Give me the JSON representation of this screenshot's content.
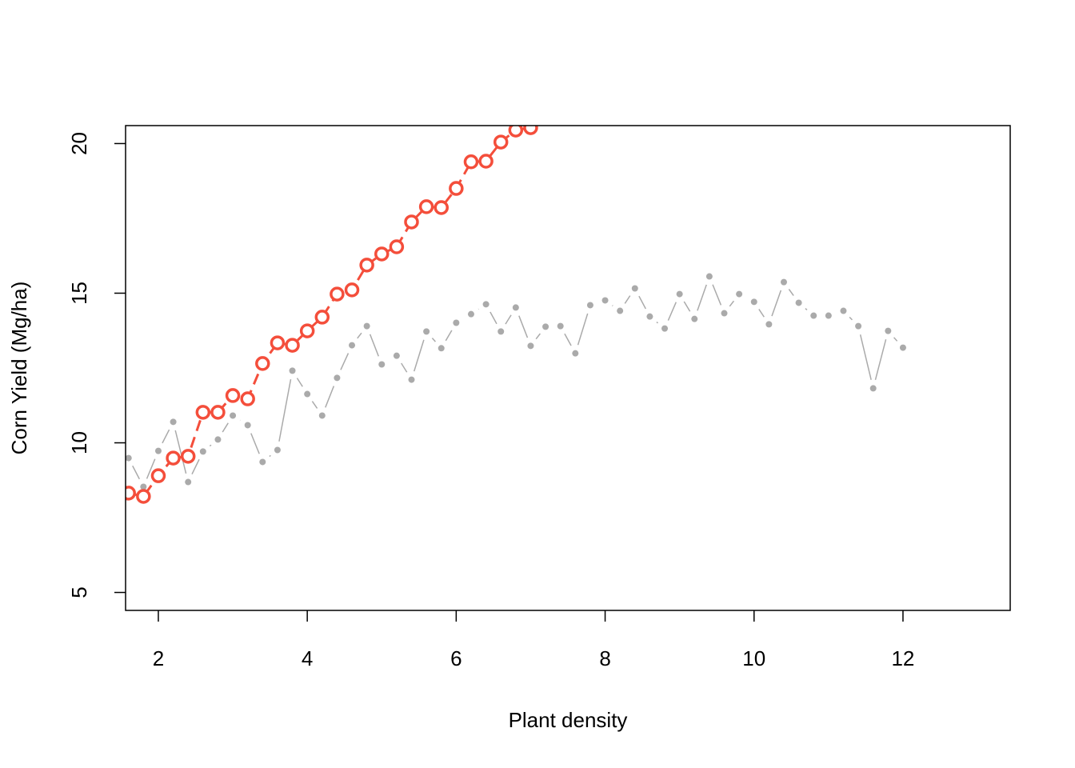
{
  "chart_data": {
    "type": "line",
    "x_label": "Plant density",
    "y_label": "Corn Yield (Mg/ha)",
    "xlim": [
      1.56,
      13.44
    ],
    "ylim": [
      4.4,
      20.6
    ],
    "xticks": [
      2,
      4,
      6,
      8,
      10,
      12
    ],
    "yticks": [
      5,
      10,
      15,
      20
    ],
    "series": [
      {
        "color": "#aaaaaa",
        "marker": "dot",
        "line_style": "solid",
        "x": [
          1.6,
          1.8,
          2.0,
          2.2,
          2.4,
          2.6,
          2.8,
          3.0,
          3.2,
          3.4,
          3.6,
          3.8,
          4.0,
          4.2,
          4.4,
          4.6,
          4.8,
          5.0,
          5.2,
          5.4,
          5.6,
          5.8,
          6.0,
          6.2,
          6.4,
          6.6,
          6.8,
          7.0,
          7.2,
          7.4,
          7.6,
          7.8,
          8.0,
          8.2,
          8.4,
          8.6,
          8.8,
          9.0,
          9.2,
          9.4,
          9.6,
          9.8,
          10.0,
          10.2,
          10.4,
          10.6,
          10.8,
          11.0,
          11.2,
          11.4,
          11.6,
          11.8,
          12.0
        ],
        "values": [
          9.49,
          8.53,
          9.73,
          10.7,
          8.69,
          9.71,
          10.11,
          10.91,
          10.59,
          9.36,
          9.76,
          12.41,
          11.63,
          10.91,
          12.17,
          13.26,
          13.9,
          12.62,
          12.91,
          12.11,
          13.72,
          13.16,
          14.01,
          14.3,
          14.63,
          13.72,
          14.52,
          13.24,
          13.88,
          13.9,
          12.99,
          14.6,
          14.76,
          14.41,
          15.16,
          14.22,
          13.82,
          14.97,
          14.14,
          15.56,
          14.33,
          14.97,
          14.71,
          13.96,
          15.37,
          14.68,
          14.25,
          14.25,
          14.41,
          13.9,
          11.82,
          13.74,
          13.18
        ]
      },
      {
        "color": "#f44e3b",
        "marker": "open-circle",
        "line_style": "dashed",
        "x": [
          1.6,
          1.8,
          2.0,
          2.2,
          2.4,
          2.6,
          2.8,
          3.0,
          3.2,
          3.4,
          3.6,
          3.8,
          4.0,
          4.2,
          4.4,
          4.6,
          4.8,
          5.0,
          5.2,
          5.4,
          5.6,
          5.8,
          6.0,
          6.2,
          6.4,
          6.6,
          6.8,
          7.0
        ],
        "values": [
          8.32,
          8.21,
          8.9,
          9.49,
          9.55,
          11.02,
          11.02,
          11.58,
          11.47,
          12.65,
          13.34,
          13.26,
          13.74,
          14.2,
          14.97,
          15.11,
          15.94,
          16.31,
          16.55,
          17.38,
          17.89,
          17.86,
          18.5,
          19.39,
          19.41,
          20.05,
          20.45,
          20.53
        ]
      }
    ]
  }
}
